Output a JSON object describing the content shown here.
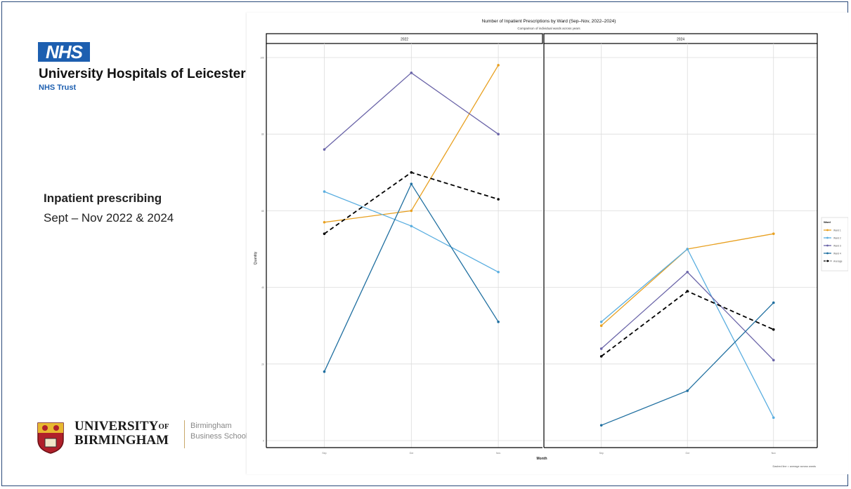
{
  "branding": {
    "nhs_logo": "NHS",
    "org_name": "University Hospitals of Leicester",
    "org_sub": "NHS Trust",
    "uob_name_line1": "UNIVERSITY",
    "uob_of": "OF",
    "uob_name_line2": "BIRMINGHAM",
    "uob_school_line1": "Birmingham",
    "uob_school_line2": "Business School"
  },
  "slide": {
    "title": "Inpatient prescribing",
    "subtitle": "Sept – Nov 2022 & 2024"
  },
  "chart_data": {
    "type": "line",
    "title": "Number of Inpatient Prescriptions by Ward (Sep–Nov, 2022–2024)",
    "subtitle": "Comparison of individual wards across years",
    "xlabel": "Month",
    "ylabel": "Quantity",
    "caption": "Dashed line = average across wards",
    "legend_title": "Ward",
    "legend_position": "right",
    "grid": true,
    "facets": [
      "2022",
      "2024"
    ],
    "categories": [
      "Sep",
      "Oct",
      "Nov"
    ],
    "ylim": [
      0,
      100
    ],
    "series": [
      {
        "name": "Ward 1",
        "color": "#e8a020",
        "dashed": false,
        "values": {
          "2022": [
            57,
            60,
            98
          ],
          "2024": [
            30,
            50,
            54
          ]
        }
      },
      {
        "name": "Ward 2",
        "color": "#5aaee0",
        "dashed": false,
        "values": {
          "2022": [
            65,
            56,
            44
          ],
          "2024": [
            31,
            50,
            6
          ]
        }
      },
      {
        "name": "Ward 3",
        "color": "#6a64a8",
        "dashed": false,
        "values": {
          "2022": [
            76,
            96,
            80
          ],
          "2024": [
            24,
            44,
            21
          ]
        }
      },
      {
        "name": "Ward 4",
        "color": "#1f6fa0",
        "dashed": false,
        "values": {
          "2022": [
            18,
            67,
            31
          ],
          "2024": [
            4,
            13,
            36
          ]
        }
      },
      {
        "name": "Average",
        "color": "#000000",
        "dashed": true,
        "values": {
          "2022": [
            54,
            70,
            63
          ],
          "2024": [
            22,
            39,
            29
          ]
        }
      }
    ]
  }
}
